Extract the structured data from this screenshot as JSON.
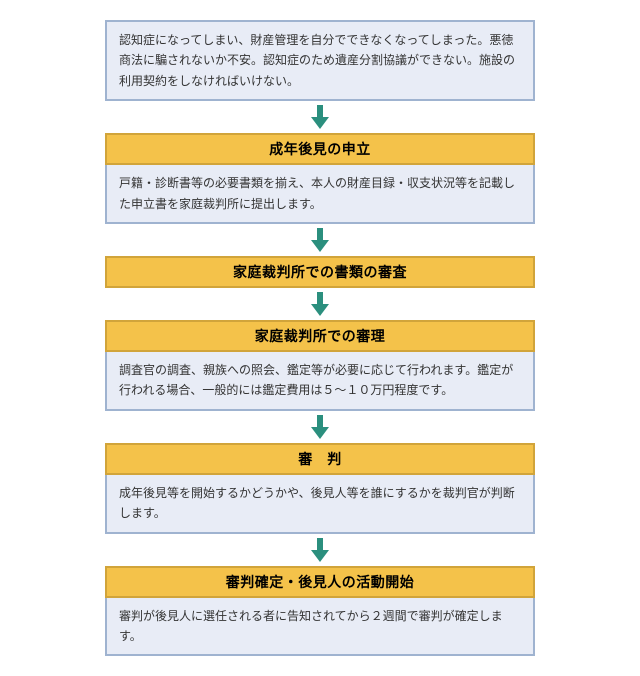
{
  "colors": {
    "context_bg": "#e8ecf6",
    "context_border": "#9fb3d0",
    "title_bg": "#f4c24a",
    "title_border": "#d1a43a",
    "desc_bg": "#e8ecf6",
    "desc_border": "#9fb3d0",
    "arrow": "#2b8f7e"
  },
  "arrow": {
    "width": 24,
    "height": 24
  },
  "context": "認知症になってしまい、財産管理を自分でできなくなってしまった。悪徳商法に騙されないか不安。認知症のため遺産分割協議ができない。施設の利用契約をしなければいけない。",
  "steps": [
    {
      "title": "成年後見の申立",
      "desc": "戸籍・診断書等の必要書類を揃え、本人の財産目録・収支状況等を記載した申立書を家庭裁判所に提出します。"
    },
    {
      "title": "家庭裁判所での書類の審査",
      "desc": null
    },
    {
      "title": "家庭裁判所での審理",
      "desc": "調査官の調査、親族への照会、鑑定等が必要に応じて行われます。鑑定が行われる場合、一般的には鑑定費用は５～１０万円程度です。"
    },
    {
      "title": "審　判",
      "desc": "成年後見等を開始するかどうかや、後見人等を誰にするかを裁判官が判断します。"
    },
    {
      "title": "審判確定・後見人の活動開始",
      "desc": "審判が後見人に選任される者に告知されてから２週間で審判が確定します。"
    }
  ]
}
